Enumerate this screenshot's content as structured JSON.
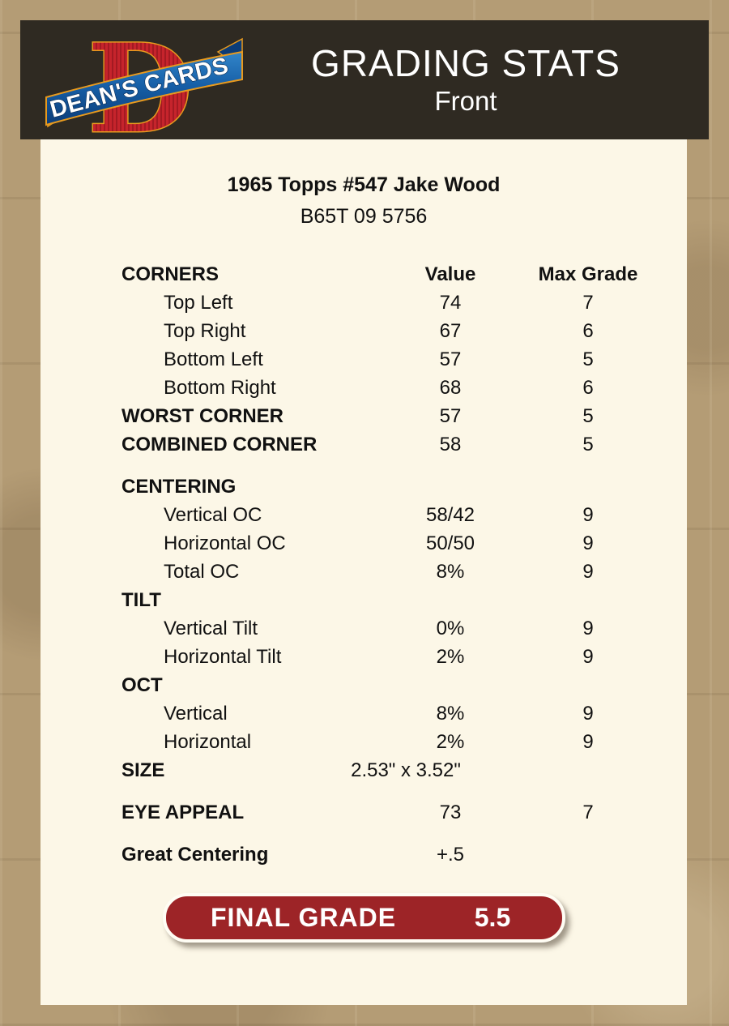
{
  "header": {
    "title": "GRADING STATS",
    "subtitle": "Front",
    "logo": {
      "letter": "D",
      "banner_text": "DEAN'S CARDS"
    }
  },
  "card": {
    "title": "1965 Topps #547 Jake Wood",
    "serial": "B65T 09 5756"
  },
  "table": {
    "rows": [
      {
        "label": "CORNERS",
        "value": "Value",
        "max": "Max Grade",
        "style": "header"
      },
      {
        "label": "Top Left",
        "value": "74",
        "max": "7",
        "style": "indent"
      },
      {
        "label": "Top Right",
        "value": "67",
        "max": "6",
        "style": "indent"
      },
      {
        "label": "Bottom Left",
        "value": "57",
        "max": "5",
        "style": "indent"
      },
      {
        "label": "Bottom Right",
        "value": "68",
        "max": "6",
        "style": "indent"
      },
      {
        "label": "WORST CORNER",
        "value": "57",
        "max": "5",
        "style": "bold"
      },
      {
        "label": "COMBINED CORNER",
        "value": "58",
        "max": "5",
        "style": "bold"
      },
      {
        "label": "CENTERING",
        "value": "",
        "max": "",
        "style": "bold",
        "gap": true
      },
      {
        "label": "Vertical OC",
        "value": "58/42",
        "max": "9",
        "style": "indent"
      },
      {
        "label": "Horizontal OC",
        "value": "50/50",
        "max": "9",
        "style": "indent"
      },
      {
        "label": "Total OC",
        "value": "8%",
        "max": "9",
        "style": "indent"
      },
      {
        "label": "TILT",
        "value": "",
        "max": "",
        "style": "bold"
      },
      {
        "label": "Vertical Tilt",
        "value": "0%",
        "max": "9",
        "style": "indent"
      },
      {
        "label": "Horizontal Tilt",
        "value": "2%",
        "max": "9",
        "style": "indent"
      },
      {
        "label": "OCT",
        "value": "",
        "max": "",
        "style": "bold"
      },
      {
        "label": "Vertical",
        "value": "8%",
        "max": "9",
        "style": "indent"
      },
      {
        "label": "Horizontal",
        "value": "2%",
        "max": "9",
        "style": "indent"
      },
      {
        "label": "SIZE",
        "value": "2.53\" x 3.52\"",
        "max": "",
        "style": "bold",
        "size_row": true
      },
      {
        "label": "EYE APPEAL",
        "value": "73",
        "max": "7",
        "style": "bold",
        "gap": true
      },
      {
        "label": "Great Centering",
        "value": "+.5",
        "max": "",
        "style": "bold",
        "gap": true
      }
    ]
  },
  "final_grade": {
    "label": "FINAL GRADE",
    "value": "5.5"
  },
  "colors": {
    "background_tan": "#b49c75",
    "header_brown": "#2f2a22",
    "content_cream": "#fcf7e7",
    "grade_red": "#9d2427",
    "logo_red": "#c6242c",
    "logo_blue": "#1760a8",
    "logo_orange": "#e89a1e"
  }
}
